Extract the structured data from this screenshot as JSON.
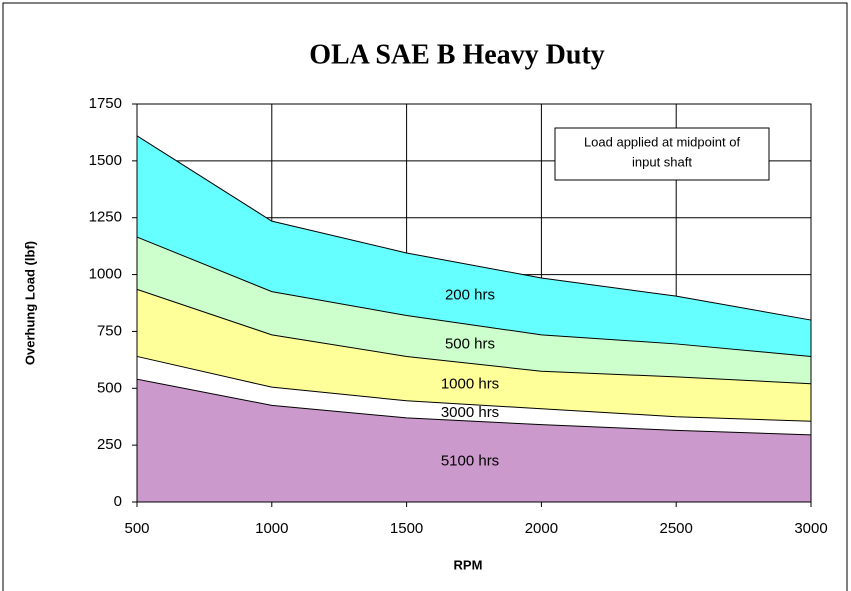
{
  "chart_data": {
    "type": "area",
    "title": "OLA SAE B Heavy Duty",
    "x_label": "RPM",
    "y_label": "Overhung Load (lbf)",
    "annotation": [
      "Load applied at midpoint of",
      "input shaft"
    ],
    "x": [
      500,
      1000,
      1500,
      2000,
      2500,
      3000
    ],
    "series": [
      {
        "name": "200 hrs",
        "color": "#66ffff",
        "values": [
          1610,
          1235,
          1095,
          985,
          905,
          800
        ]
      },
      {
        "name": "500 hrs",
        "color": "#ccffcc",
        "values": [
          1165,
          925,
          820,
          735,
          695,
          640
        ]
      },
      {
        "name": "1000 hrs",
        "color": "#ffff99",
        "values": [
          935,
          735,
          640,
          575,
          550,
          520
        ]
      },
      {
        "name": "3000 hrs",
        "color": "#ffffff",
        "values": [
          640,
          505,
          445,
          410,
          375,
          355
        ]
      },
      {
        "name": "5100 hrs",
        "color": "#cc99cc",
        "values": [
          540,
          425,
          370,
          340,
          315,
          295
        ]
      }
    ],
    "xlim": [
      500,
      3000
    ],
    "xticks": [
      500,
      1000,
      1500,
      2000,
      2500,
      3000
    ],
    "ylim": [
      0,
      1750
    ],
    "yticks": [
      0,
      250,
      500,
      750,
      1000,
      1250,
      1500,
      1750
    ],
    "grid": true
  }
}
